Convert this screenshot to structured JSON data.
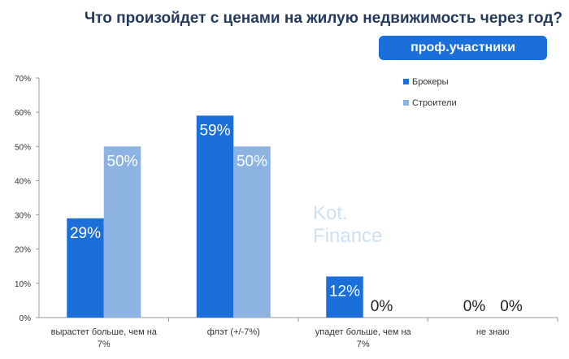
{
  "chart_data": {
    "type": "bar",
    "title": "Что произойдет с ценами на жилую недвижимость через год?",
    "subtitle": "проф.участники",
    "categories": [
      "вырастет больше, чем на 7%",
      "флэт (+/-7%)",
      "упадет больше, чем на 7%",
      "не знаю"
    ],
    "series": [
      {
        "name": "Брокеры",
        "values": [
          29,
          59,
          12,
          0
        ],
        "color": "#1a6fdb"
      },
      {
        "name": "Строители",
        "values": [
          50,
          50,
          0,
          0
        ],
        "color": "#8db3e2"
      }
    ],
    "yticks": [
      "0%",
      "10%",
      "20%",
      "30%",
      "40%",
      "50%",
      "60%",
      "70%"
    ],
    "ylim": [
      0,
      70
    ],
    "grid": false,
    "legend": "top-right",
    "xlabel": "",
    "ylabel": ""
  },
  "watermark": {
    "line1": "Kot.",
    "line2": "Finance"
  }
}
